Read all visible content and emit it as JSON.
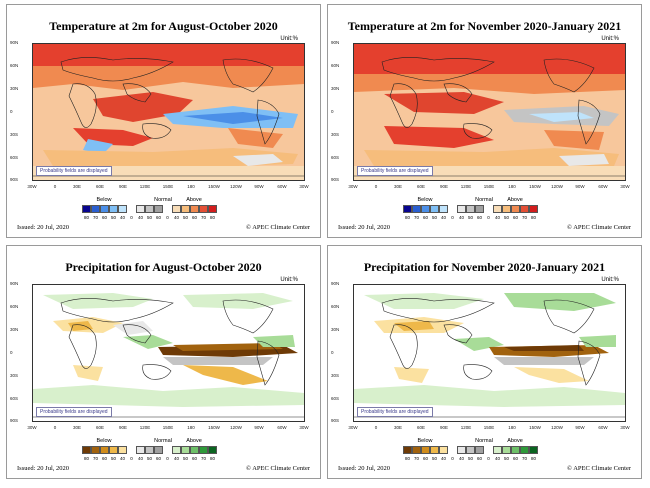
{
  "panels": [
    {
      "title": "Temperature at 2m for August-October 2020",
      "unit": "Unit:%",
      "note": "Probability fields are displayed",
      "legend": {
        "below": "Below",
        "normal": "Normal",
        "above": "Above",
        "ticks": [
          "80",
          "70",
          "60",
          "50",
          "40",
          "0",
          "40",
          "50",
          "60",
          "0",
          "40",
          "50",
          "60",
          "70",
          "80"
        ],
        "colors": [
          "#08048f",
          "#2a5fd0",
          "#4b8fe8",
          "#7fbff5",
          "#bfe3fb",
          "#ffffff",
          "#e8e8e8",
          "#c4c4c4",
          "#a0a0a0",
          "#ffffff",
          "#f8ddb8",
          "#f6bd7c",
          "#f08a50",
          "#e45036",
          "#d21d1d"
        ]
      },
      "issued": "Issued: 20 Jul, 2020",
      "credit": "© APEC Climate Center"
    },
    {
      "title": "Temperature at 2m for November 2020-January 2021",
      "unit": "Unit:%",
      "note": "Probability fields are displayed",
      "legend": {
        "below": "Below",
        "normal": "Normal",
        "above": "Above",
        "ticks": [
          "80",
          "70",
          "60",
          "50",
          "40",
          "0",
          "40",
          "50",
          "60",
          "0",
          "40",
          "50",
          "60",
          "70",
          "80"
        ],
        "colors": [
          "#08048f",
          "#2a5fd0",
          "#4b8fe8",
          "#7fbff5",
          "#bfe3fb",
          "#ffffff",
          "#e8e8e8",
          "#c4c4c4",
          "#a0a0a0",
          "#ffffff",
          "#f8ddb8",
          "#f6bd7c",
          "#f08a50",
          "#e45036",
          "#d21d1d"
        ]
      },
      "issued": "Issued: 20 Jul, 2020",
      "credit": "© APEC Climate Center"
    },
    {
      "title": "Precipitation for August-October 2020",
      "unit": "Unit:%",
      "note": "Probability fields are displayed",
      "legend": {
        "below": "Below",
        "normal": "Normal",
        "above": "Above",
        "ticks": [
          "80",
          "70",
          "60",
          "50",
          "40",
          "0",
          "40",
          "50",
          "60",
          "0",
          "40",
          "50",
          "60",
          "70",
          "80"
        ],
        "colors": [
          "#6e3a06",
          "#a1620e",
          "#d08c1c",
          "#eeb84a",
          "#fbe1a0",
          "#ffffff",
          "#e8e8e8",
          "#c4c4c4",
          "#a0a0a0",
          "#ffffff",
          "#d8f0cc",
          "#a8dc98",
          "#6dc068",
          "#2f9a3a",
          "#0b6420"
        ]
      },
      "issued": "Issued: 20 Jul, 2020",
      "credit": "© APEC Climate Center"
    },
    {
      "title": "Precipitation for November 2020-January 2021",
      "unit": "Unit:%",
      "note": "Probability fields are displayed",
      "legend": {
        "below": "Below",
        "normal": "Normal",
        "above": "Above",
        "ticks": [
          "80",
          "70",
          "60",
          "50",
          "40",
          "0",
          "40",
          "50",
          "60",
          "0",
          "40",
          "50",
          "60",
          "70",
          "80"
        ],
        "colors": [
          "#6e3a06",
          "#a1620e",
          "#d08c1c",
          "#eeb84a",
          "#fbe1a0",
          "#ffffff",
          "#e8e8e8",
          "#c4c4c4",
          "#a0a0a0",
          "#ffffff",
          "#d8f0cc",
          "#a8dc98",
          "#6dc068",
          "#2f9a3a",
          "#0b6420"
        ]
      },
      "issued": "Issued: 20 Jul, 2020",
      "credit": "© APEC Climate Center"
    }
  ],
  "axes": {
    "lat_labels": [
      "90N",
      "60N",
      "30N",
      "0",
      "30S",
      "60S",
      "90S"
    ],
    "lon_labels": [
      "30W",
      "0",
      "30E",
      "60E",
      "90E",
      "120E",
      "150E",
      "180",
      "150W",
      "120W",
      "90W",
      "60W",
      "30W"
    ]
  }
}
